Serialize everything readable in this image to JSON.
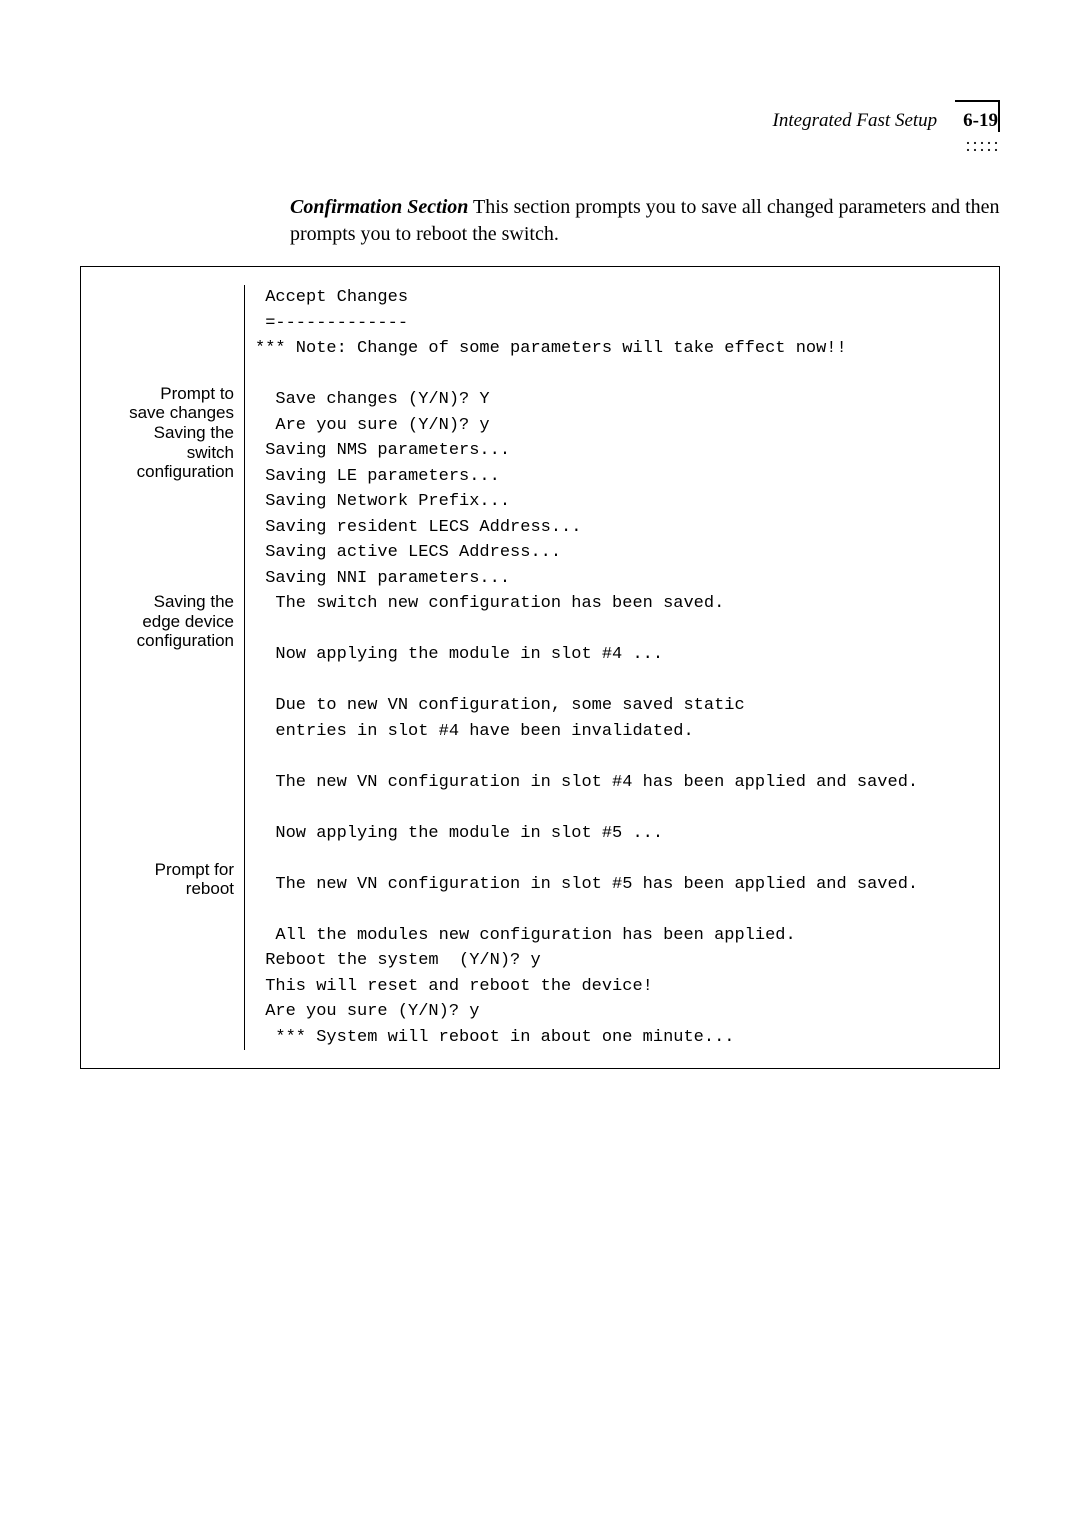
{
  "header": {
    "title": "Integrated Fast Setup",
    "page_number": "6-19",
    "dots_row1": "·····",
    "dots_row2": "·····"
  },
  "intro": {
    "bold": "Confirmation Section",
    "rest": "   This section prompts you to save all changed parameters and then prompts you to reboot the switch."
  },
  "labels": {
    "l1a": "Prompt to",
    "l1b": "save changes",
    "l2a": "Saving the",
    "l2b": "switch",
    "l2c": "configuration",
    "l3a": "Saving the",
    "l3b": "edge device",
    "l3c": "configuration",
    "l4a": "Prompt for",
    "l4b": "reboot"
  },
  "console": {
    "line01": " Accept Changes",
    "line02": " =-------------",
    "line03": "*** Note: Change of some parameters will take effect now!!",
    "line04": "",
    "line05": "  Save changes (Y/N)? Y",
    "line06": "  Are you sure (Y/N)? y",
    "line07": " Saving NMS parameters...",
    "line08": " Saving LE parameters...",
    "line09": " Saving Network Prefix...",
    "line10": " Saving resident LECS Address...",
    "line11": " Saving active LECS Address...",
    "line12": " Saving NNI parameters...",
    "line13": "  The switch new configuration has been saved.",
    "line14": "",
    "line15": "  Now applying the module in slot #4 ...",
    "line16": "",
    "line17": "  Due to new VN configuration, some saved static",
    "line18": "  entries in slot #4 have been invalidated.",
    "line19": "",
    "line20": "  The new VN configuration in slot #4 has been applied and saved.",
    "line21": "",
    "line22": "  Now applying the module in slot #5 ...",
    "line23": "",
    "line24": "  The new VN configuration in slot #5 has been applied and saved.",
    "line25": "",
    "line26": "  All the modules new configuration has been applied.",
    "line27": " Reboot the system  (Y/N)? y",
    "line28": " This will reset and reboot the device!",
    "line29": " Are you sure (Y/N)? y",
    "line30": "  *** System will reboot in about one minute..."
  }
}
